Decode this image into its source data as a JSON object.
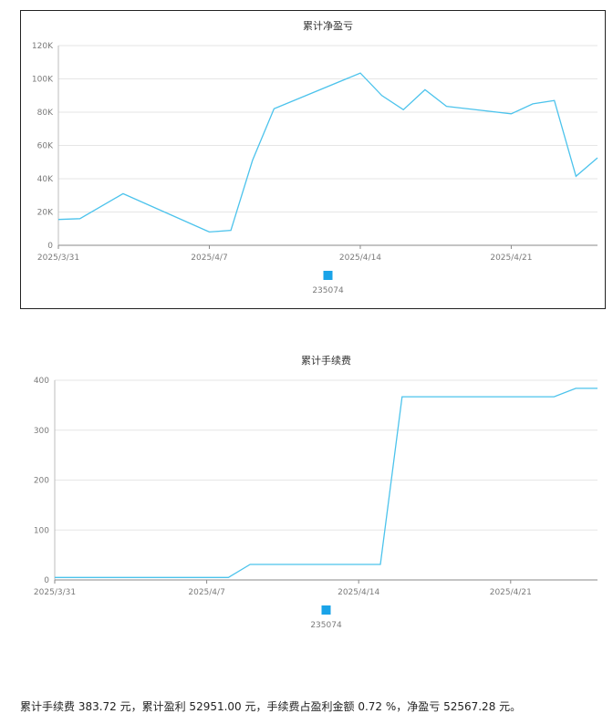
{
  "chart_data": [
    {
      "type": "line",
      "title": "累计净盈亏",
      "x": [
        "2025/3/31",
        "2025/4/1",
        "2025/4/3",
        "2025/4/7",
        "2025/4/8",
        "2025/4/9",
        "2025/4/10",
        "2025/4/14",
        "2025/4/15",
        "2025/4/16",
        "2025/4/17",
        "2025/4/18",
        "2025/4/21",
        "2025/4/22",
        "2025/4/23",
        "2025/4/24",
        "2025/4/25"
      ],
      "x_ticks": [
        "2025/3/31",
        "2025/4/7",
        "2025/4/14",
        "2025/4/21"
      ],
      "series": [
        {
          "name": "235074",
          "values": [
            15500,
            16000,
            31000,
            8000,
            9000,
            51000,
            82000,
            103500,
            90000,
            81500,
            93500,
            83500,
            79000,
            85000,
            87000,
            41500,
            52567
          ]
        }
      ],
      "ylim": [
        0,
        120000
      ],
      "y_ticks": [
        "0",
        "20K",
        "40K",
        "60K",
        "80K",
        "100K",
        "120K"
      ],
      "y_tick_values": [
        0,
        20000,
        40000,
        60000,
        80000,
        100000,
        120000
      ],
      "grid": true,
      "legend_position": "bottom",
      "color": "#4cc3ec",
      "legend_color": "#1aa3e8"
    },
    {
      "type": "line",
      "title": "累计手续费",
      "x": [
        "2025/3/31",
        "2025/4/8",
        "2025/4/9",
        "2025/4/15",
        "2025/4/16",
        "2025/4/23",
        "2025/4/24",
        "2025/4/25"
      ],
      "x_ticks": [
        "2025/3/31",
        "2025/4/7",
        "2025/4/14",
        "2025/4/21"
      ],
      "series": [
        {
          "name": "235074",
          "values": [
            5,
            5,
            31,
            31,
            367,
            367,
            383.72,
            383.72
          ]
        }
      ],
      "ylim": [
        0,
        400
      ],
      "y_ticks": [
        "0",
        "100",
        "200",
        "300",
        "400"
      ],
      "y_tick_values": [
        0,
        100,
        200,
        300,
        400
      ],
      "grid": true,
      "legend_position": "bottom",
      "color": "#4cc3ec",
      "legend_color": "#1aa3e8"
    }
  ],
  "summary_text": "累计手续费 383.72 元，累计盈利 52951.00 元，手续费占盈利金额 0.72 %，净盈亏 52567.28 元。"
}
